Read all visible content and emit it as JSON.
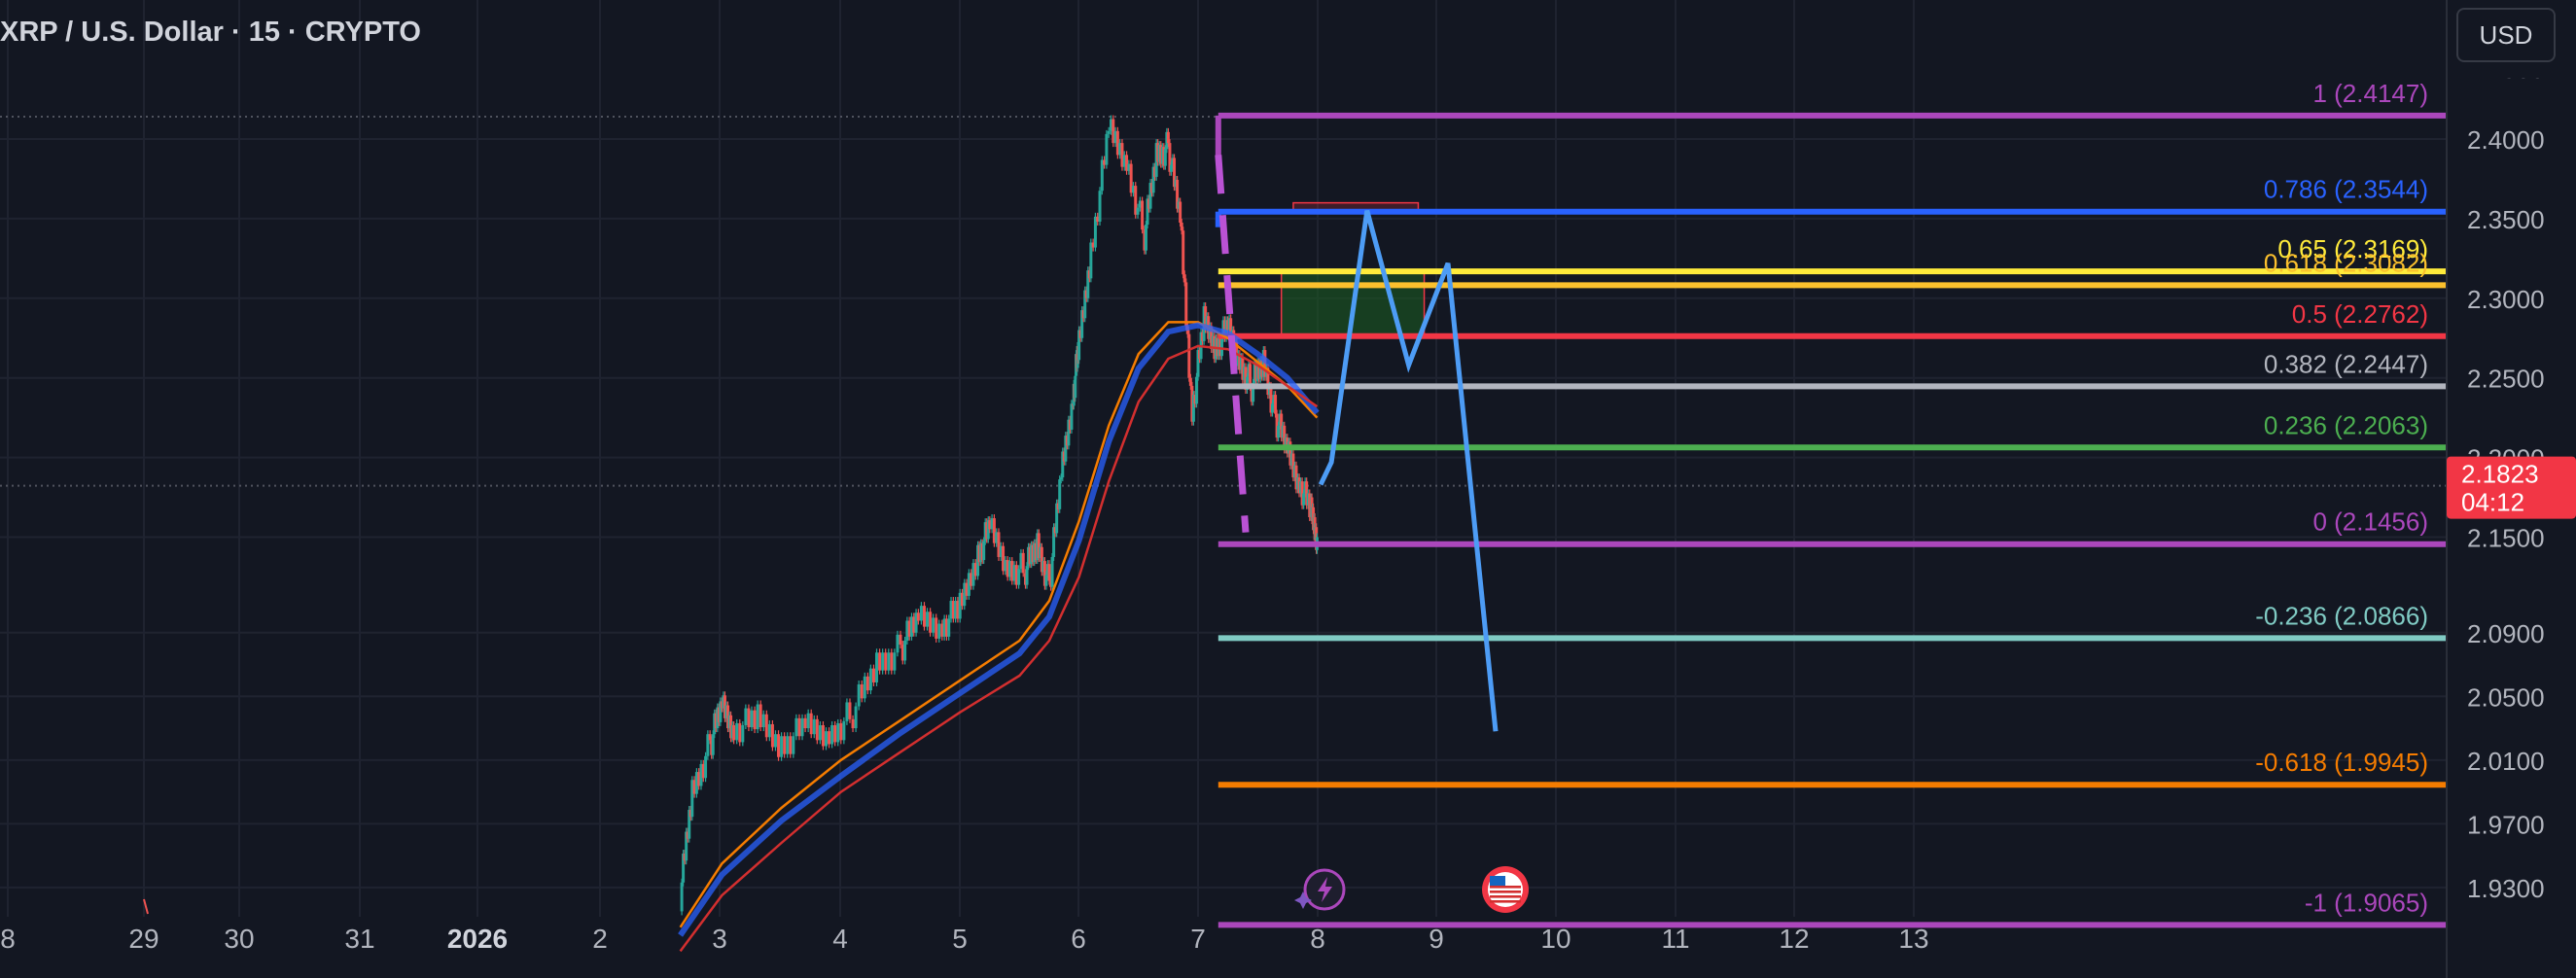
{
  "header": {
    "title": "XRP / U.S. Dollar · 15 · CRYPTO",
    "currency_button": "USD"
  },
  "price_badge": {
    "price": "2.1823",
    "countdown": "04:12"
  },
  "colors": {
    "background": "#131722",
    "grid": "#1f2330",
    "axis_text": "#b2b5be",
    "candle_up": "#26a69a",
    "candle_down": "#ef5350",
    "price_badge": "#f23645",
    "projection": "#4d9cf5",
    "projection_dash": "#ba52d4",
    "ema_orange": "#f57c00",
    "ema_blue": "#2962ff",
    "ema_red": "#d32f2f"
  },
  "icons": [
    "lightning-event-icon",
    "us-flag-event-icon"
  ],
  "chart_data": {
    "type": "line",
    "title": "XRP / U.S. Dollar · 15 · CRYPTO",
    "xlabel": "",
    "ylabel": "",
    "ylim": [
      1.905,
      2.44
    ],
    "x_ticks": [
      "8",
      "29",
      "30",
      "31",
      "2026",
      "2",
      "3",
      "4",
      "5",
      "6",
      "7",
      "8",
      "9",
      "10",
      "11",
      "12",
      "13"
    ],
    "y_ticks": [
      "1.9300",
      "1.9700",
      "2.0100",
      "2.0500",
      "2.0900",
      "2.1500",
      "2.2000",
      "2.2500",
      "2.3000",
      "2.3500",
      "2.4000"
    ],
    "current_price": 2.1823,
    "fibonacci_levels": [
      {
        "label": "1",
        "value_label": "2.4147",
        "value": 2.4147,
        "color": "#ab47bc"
      },
      {
        "label": "0.786",
        "value_label": "2.3544",
        "value": 2.3544,
        "color": "#2962ff"
      },
      {
        "label": "0.65",
        "value_label": "2.3169",
        "value": 2.3169,
        "color": "#ffeb3b"
      },
      {
        "label": "0.618",
        "value_label": "2.3082",
        "value": 2.3082,
        "color": "#fbc02d"
      },
      {
        "label": "0.5",
        "value_label": "2.2762",
        "value": 2.2762,
        "color": "#f23645"
      },
      {
        "label": "0.382",
        "value_label": "2.2447",
        "value": 2.2447,
        "color": "#b2b5be"
      },
      {
        "label": "0.236",
        "value_label": "2.2063",
        "value": 2.2063,
        "color": "#4caf50"
      },
      {
        "label": "0",
        "value_label": "2.1456",
        "value": 2.1456,
        "color": "#ab47bc"
      },
      {
        "label": "-0.236",
        "value_label": "2.0866",
        "value": 2.0866,
        "color": "#80cbc4"
      },
      {
        "label": "-0.618",
        "value_label": "1.9945",
        "value": 1.9945,
        "color": "#f57c00"
      },
      {
        "label": "-1",
        "value_label": "1.9065",
        "value": 1.9065,
        "color": "#ab47bc"
      }
    ],
    "price_path": {
      "x_days": [
        2.65,
        2.75,
        2.9,
        3.0,
        3.1,
        3.3,
        3.5,
        3.7,
        3.9,
        4.1,
        4.3,
        4.5,
        4.65,
        4.85,
        5.0,
        5.15,
        5.25,
        5.4,
        5.55,
        5.65,
        5.75,
        5.85,
        5.95,
        6.0,
        6.1,
        6.25,
        6.4,
        6.55,
        6.65,
        6.75,
        6.85,
        6.95,
        7.05,
        7.15,
        7.25,
        7.35,
        7.45,
        7.55,
        7.65,
        7.75,
        7.85,
        7.95,
        8.0
      ],
      "y": [
        1.925,
        1.99,
        2.02,
        2.045,
        2.03,
        2.035,
        2.02,
        2.03,
        2.025,
        2.04,
        2.07,
        2.08,
        2.1,
        2.095,
        2.105,
        2.14,
        2.155,
        2.13,
        2.13,
        2.145,
        2.12,
        2.19,
        2.24,
        2.27,
        2.33,
        2.405,
        2.385,
        2.34,
        2.39,
        2.395,
        2.35,
        2.23,
        2.285,
        2.27,
        2.28,
        2.26,
        2.245,
        2.26,
        2.225,
        2.205,
        2.185,
        2.165,
        2.15
      ]
    },
    "ema_lines": [
      {
        "color": "#f57c00",
        "x_days": [
          2.65,
          3.0,
          3.5,
          4.0,
          4.5,
          5.0,
          5.5,
          5.75,
          6.0,
          6.25,
          6.5,
          6.75,
          7.0,
          7.25,
          7.5,
          7.75,
          8.0
        ],
        "y": [
          1.905,
          1.945,
          1.98,
          2.01,
          2.035,
          2.06,
          2.085,
          2.11,
          2.16,
          2.22,
          2.265,
          2.285,
          2.285,
          2.275,
          2.26,
          2.245,
          2.225
        ]
      },
      {
        "color": "#2962ff",
        "x_days": [
          2.65,
          3.0,
          3.5,
          4.0,
          4.5,
          5.0,
          5.5,
          5.75,
          6.0,
          6.25,
          6.5,
          6.75,
          7.0,
          7.25,
          7.5,
          7.75,
          8.0
        ],
        "y": [
          1.9,
          1.938,
          1.972,
          2.0,
          2.027,
          2.052,
          2.077,
          2.1,
          2.148,
          2.21,
          2.256,
          2.279,
          2.283,
          2.278,
          2.265,
          2.25,
          2.228
        ]
      },
      {
        "color": "#d32f2f",
        "x_days": [
          2.65,
          3.0,
          3.5,
          4.0,
          4.5,
          5.0,
          5.5,
          5.75,
          6.0,
          6.25,
          6.5,
          6.75,
          7.0,
          7.25,
          7.5,
          7.75,
          8.0
        ],
        "y": [
          1.89,
          1.925,
          1.958,
          1.99,
          2.015,
          2.04,
          2.063,
          2.085,
          2.125,
          2.185,
          2.235,
          2.262,
          2.27,
          2.268,
          2.258,
          2.245,
          2.232
        ]
      }
    ],
    "projection": {
      "x_days": [
        8.03,
        8.12,
        8.42,
        8.77,
        9.1,
        9.5
      ],
      "y": [
        2.183,
        2.197,
        2.355,
        2.258,
        2.322,
        2.028
      ]
    },
    "projection_dashed": {
      "x_days": [
        7.17,
        7.4
      ],
      "y": [
        2.39,
        2.153
      ]
    },
    "zones": [
      {
        "kind": "resistance",
        "x_days": [
          7.8,
          8.85
        ],
        "y": [
          2.3544,
          2.3575
        ],
        "color": "#f23645"
      },
      {
        "kind": "target",
        "x_days": [
          7.7,
          8.9
        ],
        "y": [
          2.2762,
          2.3169
        ],
        "color": "#1b5e20"
      }
    ]
  }
}
